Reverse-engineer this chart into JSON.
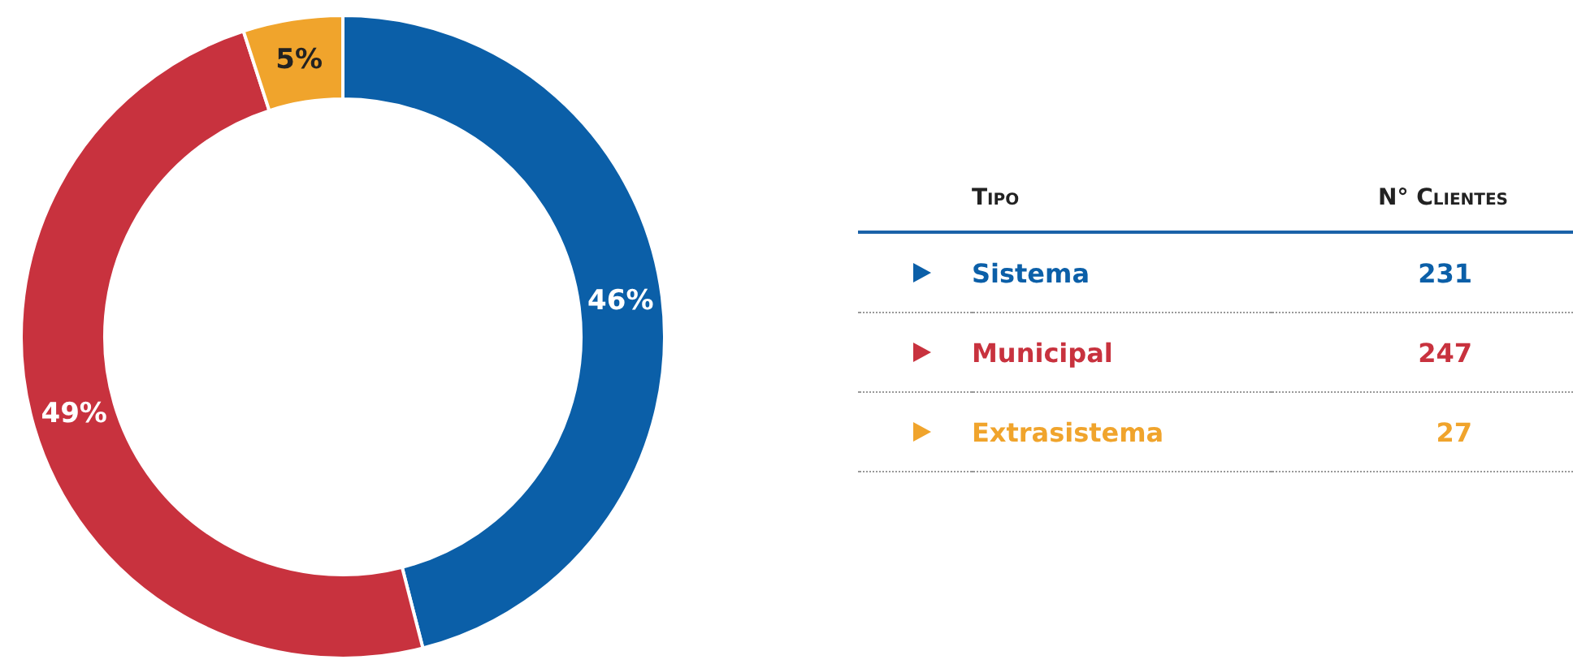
{
  "chart_data": {
    "type": "donut",
    "categories": [
      "Sistema",
      "Municipal",
      "Extrasistema"
    ],
    "values": [
      46,
      49,
      5
    ],
    "colors": [
      "#0b5fa8",
      "#c8323e",
      "#f0a42c"
    ],
    "value_labels": [
      "46%",
      "49%",
      "5%"
    ],
    "legend": "right",
    "legend_title": "Tipo",
    "annotations": [
      "N° Clientes",
      "231",
      "247",
      "27"
    ]
  }
}
